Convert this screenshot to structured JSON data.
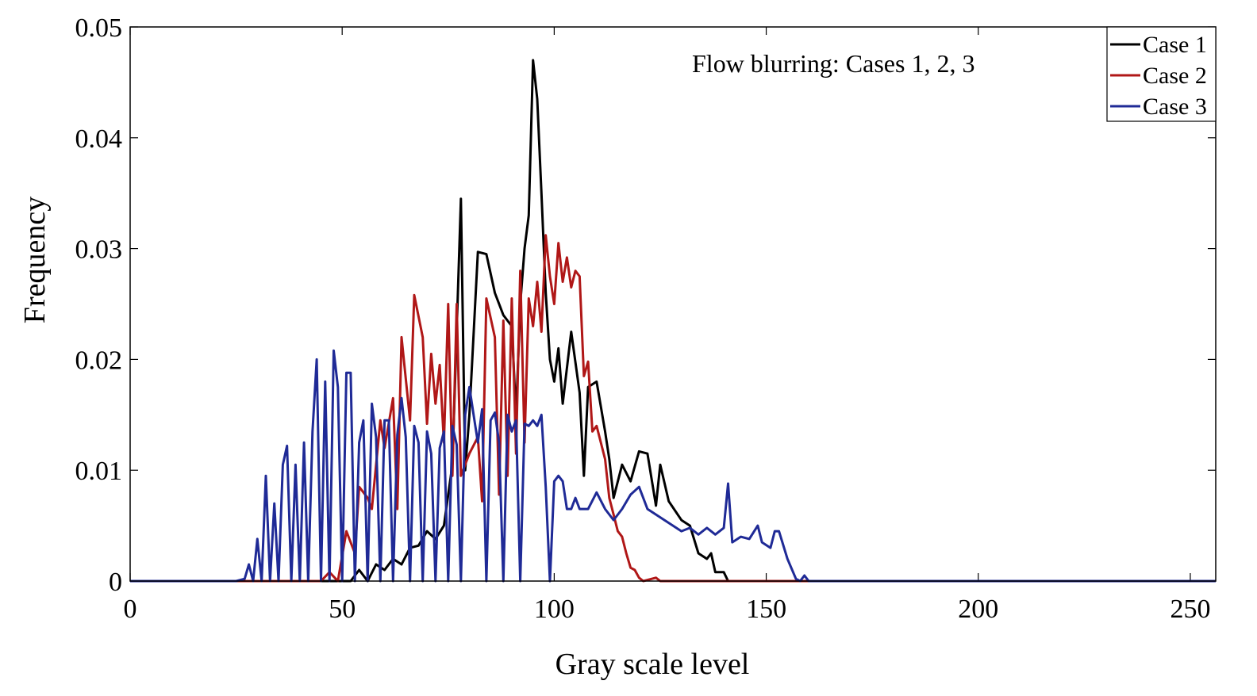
{
  "chart_data": {
    "type": "line",
    "title": "",
    "annotation": "Flow blurring: Cases 1, 2, 3",
    "xlabel": "Gray scale level",
    "ylabel": "Frequency",
    "xlim": [
      0,
      256
    ],
    "ylim": [
      0,
      0.05
    ],
    "xticks": [
      0,
      50,
      100,
      150,
      200,
      250
    ],
    "xtick_labels": [
      "0",
      "50",
      "100",
      "150",
      "200",
      "250"
    ],
    "yticks": [
      0,
      0.01,
      0.02,
      0.03,
      0.04,
      0.05
    ],
    "ytick_labels": [
      "0",
      "0.01",
      "0.02",
      "0.03",
      "0.04",
      "0.05"
    ],
    "legend_position": "top-right",
    "series": [
      {
        "name": "Case 1",
        "color": "#000000",
        "points": [
          [
            0,
            0
          ],
          [
            50,
            0
          ],
          [
            52,
            0
          ],
          [
            54,
            0.001
          ],
          [
            56,
            0
          ],
          [
            58,
            0.0015
          ],
          [
            60,
            0.001
          ],
          [
            62,
            0.002
          ],
          [
            64,
            0.0015
          ],
          [
            66,
            0.003
          ],
          [
            68,
            0.0032
          ],
          [
            70,
            0.0045
          ],
          [
            72,
            0.0038
          ],
          [
            74,
            0.005
          ],
          [
            76,
            0.0105
          ],
          [
            78,
            0.0345
          ],
          [
            79,
            0.01
          ],
          [
            80,
            0.015
          ],
          [
            82,
            0.0297
          ],
          [
            84,
            0.0295
          ],
          [
            86,
            0.026
          ],
          [
            88,
            0.024
          ],
          [
            90,
            0.023
          ],
          [
            91,
            0.015
          ],
          [
            92,
            0.025
          ],
          [
            93,
            0.03
          ],
          [
            94,
            0.033
          ],
          [
            95,
            0.047
          ],
          [
            96,
            0.0435
          ],
          [
            97,
            0.035
          ],
          [
            98,
            0.026
          ],
          [
            99,
            0.02
          ],
          [
            100,
            0.018
          ],
          [
            101,
            0.021
          ],
          [
            102,
            0.016
          ],
          [
            104,
            0.0225
          ],
          [
            106,
            0.017
          ],
          [
            107,
            0.0095
          ],
          [
            108,
            0.0175
          ],
          [
            110,
            0.018
          ],
          [
            112,
            0.0135
          ],
          [
            113,
            0.011
          ],
          [
            114,
            0.0075
          ],
          [
            116,
            0.0105
          ],
          [
            118,
            0.009
          ],
          [
            120,
            0.0117
          ],
          [
            122,
            0.0115
          ],
          [
            124,
            0.0068
          ],
          [
            125,
            0.0105
          ],
          [
            127,
            0.0072
          ],
          [
            130,
            0.0055
          ],
          [
            132,
            0.005
          ],
          [
            134,
            0.0025
          ],
          [
            136,
            0.002
          ],
          [
            137,
            0.0025
          ],
          [
            138,
            0.0008
          ],
          [
            140,
            0.0008
          ],
          [
            141,
            0
          ],
          [
            150,
            0
          ],
          [
            256,
            0
          ]
        ]
      },
      {
        "name": "Case 2",
        "color": "#b01717",
        "points": [
          [
            0,
            0
          ],
          [
            45,
            0
          ],
          [
            47,
            0.0008
          ],
          [
            49,
            0
          ],
          [
            51,
            0.0045
          ],
          [
            53,
            0.0025
          ],
          [
            54,
            0.0085
          ],
          [
            56,
            0.0075
          ],
          [
            57,
            0.0065
          ],
          [
            59,
            0.0145
          ],
          [
            60,
            0.012
          ],
          [
            62,
            0.0165
          ],
          [
            63,
            0.0065
          ],
          [
            64,
            0.022
          ],
          [
            66,
            0.0145
          ],
          [
            67,
            0.0258
          ],
          [
            69,
            0.022
          ],
          [
            70,
            0.0142
          ],
          [
            71,
            0.0205
          ],
          [
            72,
            0.016
          ],
          [
            73,
            0.0195
          ],
          [
            74,
            0.0125
          ],
          [
            75,
            0.025
          ],
          [
            76,
            0.0095
          ],
          [
            77,
            0.025
          ],
          [
            78,
            0.0095
          ],
          [
            80,
            0.0115
          ],
          [
            82,
            0.013
          ],
          [
            83,
            0.0072
          ],
          [
            84,
            0.0255
          ],
          [
            86,
            0.022
          ],
          [
            87,
            0.0078
          ],
          [
            88,
            0.0235
          ],
          [
            89,
            0.0095
          ],
          [
            90,
            0.0255
          ],
          [
            91,
            0.0115
          ],
          [
            92,
            0.028
          ],
          [
            93,
            0.0125
          ],
          [
            94,
            0.0255
          ],
          [
            95,
            0.023
          ],
          [
            96,
            0.027
          ],
          [
            97,
            0.0225
          ],
          [
            98,
            0.0312
          ],
          [
            99,
            0.0275
          ],
          [
            100,
            0.025
          ],
          [
            101,
            0.0305
          ],
          [
            102,
            0.027
          ],
          [
            103,
            0.0292
          ],
          [
            104,
            0.0265
          ],
          [
            105,
            0.028
          ],
          [
            106,
            0.0275
          ],
          [
            107,
            0.0185
          ],
          [
            108,
            0.0198
          ],
          [
            109,
            0.0135
          ],
          [
            110,
            0.014
          ],
          [
            112,
            0.011
          ],
          [
            113,
            0.0075
          ],
          [
            114,
            0.006
          ],
          [
            115,
            0.0045
          ],
          [
            116,
            0.004
          ],
          [
            117,
            0.0025
          ],
          [
            118,
            0.0012
          ],
          [
            119,
            0.001
          ],
          [
            120,
            0.0003
          ],
          [
            121,
            0
          ],
          [
            123,
            0.0002
          ],
          [
            124,
            0.0003
          ],
          [
            125,
            0
          ],
          [
            256,
            0
          ]
        ]
      },
      {
        "name": "Case 3",
        "color": "#1f2a96",
        "points": [
          [
            0,
            0
          ],
          [
            25,
            0
          ],
          [
            27,
            0.0002
          ],
          [
            28,
            0.0015
          ],
          [
            29,
            0
          ],
          [
            30,
            0.0038
          ],
          [
            31,
            0
          ],
          [
            32,
            0.0095
          ],
          [
            33,
            0
          ],
          [
            34,
            0.007
          ],
          [
            35,
            0
          ],
          [
            36,
            0.0105
          ],
          [
            37,
            0.0122
          ],
          [
            38,
            0
          ],
          [
            39,
            0.0105
          ],
          [
            40,
            0
          ],
          [
            41,
            0.0125
          ],
          [
            42,
            0
          ],
          [
            43,
            0.0135
          ],
          [
            44,
            0.02
          ],
          [
            45,
            0
          ],
          [
            46,
            0.018
          ],
          [
            47,
            0
          ],
          [
            48,
            0.0208
          ],
          [
            49,
            0.0175
          ],
          [
            50,
            0
          ],
          [
            51,
            0.0188
          ],
          [
            52,
            0.0188
          ],
          [
            53,
            0
          ],
          [
            54,
            0.0125
          ],
          [
            55,
            0.0145
          ],
          [
            56,
            0
          ],
          [
            57,
            0.016
          ],
          [
            58,
            0.013
          ],
          [
            59,
            0
          ],
          [
            60,
            0.0145
          ],
          [
            61,
            0.0145
          ],
          [
            62,
            0
          ],
          [
            63,
            0.0132
          ],
          [
            64,
            0.0165
          ],
          [
            65,
            0.013
          ],
          [
            66,
            0
          ],
          [
            67,
            0.014
          ],
          [
            68,
            0.0125
          ],
          [
            69,
            0
          ],
          [
            70,
            0.0135
          ],
          [
            71,
            0.0115
          ],
          [
            72,
            0
          ],
          [
            73,
            0.012
          ],
          [
            74,
            0.0135
          ],
          [
            75,
            0
          ],
          [
            76,
            0.014
          ],
          [
            77,
            0.0123
          ],
          [
            78,
            0
          ],
          [
            79,
            0.015
          ],
          [
            80,
            0.0175
          ],
          [
            81,
            0.015
          ],
          [
            82,
            0.0125
          ],
          [
            83,
            0.0155
          ],
          [
            84,
            0
          ],
          [
            85,
            0.0145
          ],
          [
            86,
            0.0152
          ],
          [
            87,
            0.0125
          ],
          [
            88,
            0
          ],
          [
            89,
            0.015
          ],
          [
            90,
            0.0135
          ],
          [
            91,
            0.0145
          ],
          [
            92,
            0
          ],
          [
            93,
            0.0142
          ],
          [
            94,
            0.014
          ],
          [
            95,
            0.0145
          ],
          [
            96,
            0.014
          ],
          [
            97,
            0.015
          ],
          [
            98,
            0.0085
          ],
          [
            99,
            0
          ],
          [
            100,
            0.009
          ],
          [
            101,
            0.0095
          ],
          [
            102,
            0.009
          ],
          [
            103,
            0.0065
          ],
          [
            104,
            0.0065
          ],
          [
            105,
            0.0075
          ],
          [
            106,
            0.0065
          ],
          [
            108,
            0.0065
          ],
          [
            110,
            0.008
          ],
          [
            112,
            0.0065
          ],
          [
            114,
            0.0055
          ],
          [
            116,
            0.0065
          ],
          [
            118,
            0.0078
          ],
          [
            120,
            0.0085
          ],
          [
            122,
            0.0065
          ],
          [
            124,
            0.006
          ],
          [
            126,
            0.0055
          ],
          [
            128,
            0.005
          ],
          [
            130,
            0.0045
          ],
          [
            132,
            0.0048
          ],
          [
            134,
            0.0042
          ],
          [
            136,
            0.0048
          ],
          [
            138,
            0.0042
          ],
          [
            140,
            0.0048
          ],
          [
            141,
            0.0088
          ],
          [
            142,
            0.0035
          ],
          [
            144,
            0.004
          ],
          [
            146,
            0.0038
          ],
          [
            148,
            0.005
          ],
          [
            149,
            0.0035
          ],
          [
            151,
            0.003
          ],
          [
            152,
            0.0045
          ],
          [
            153,
            0.0045
          ],
          [
            155,
            0.002
          ],
          [
            157,
            0.0002
          ],
          [
            158,
            0
          ],
          [
            159,
            0.0005
          ],
          [
            160,
            0
          ],
          [
            256,
            0
          ]
        ]
      }
    ]
  }
}
